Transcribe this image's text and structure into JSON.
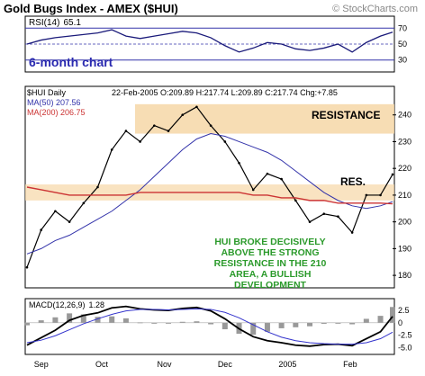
{
  "title": "Gold Bugs Index - AMEX ($HUI)",
  "credit": "© StockCharts.com",
  "chart_data": [
    {
      "type": "line",
      "name": "rsi-panel",
      "label": "RSI(14)",
      "last_value": "65.1",
      "ylim": [
        15,
        85
      ],
      "yticks": [
        30,
        50,
        70
      ],
      "reference_lines": [
        30,
        70
      ],
      "annotation": "6-month chart",
      "x": [
        "2004-08-25",
        "2004-09-01",
        "2004-09-08",
        "2004-09-15",
        "2004-09-22",
        "2004-09-29",
        "2004-10-06",
        "2004-10-13",
        "2004-10-20",
        "2004-10-27",
        "2004-11-03",
        "2004-11-10",
        "2004-11-17",
        "2004-11-24",
        "2004-12-01",
        "2004-12-08",
        "2004-12-15",
        "2004-12-22",
        "2004-12-29",
        "2005-01-05",
        "2005-01-12",
        "2005-01-19",
        "2005-01-26",
        "2005-02-02",
        "2005-02-09",
        "2005-02-16",
        "2005-02-22"
      ],
      "values": [
        50,
        55,
        58,
        60,
        62,
        64,
        68,
        60,
        57,
        60,
        63,
        66,
        64,
        58,
        48,
        40,
        45,
        52,
        50,
        44,
        42,
        45,
        50,
        40,
        52,
        60,
        65
      ]
    },
    {
      "type": "line",
      "name": "price-panel",
      "header": "22-Feb-2005  O:209.89  H:217.74  L:209.89  C:217.74  Chg:+7.85",
      "symbol_label": "$HUI Daily",
      "ma_labels": [
        "MA(50) 207.56",
        "MA(200) 206.75"
      ],
      "ylim": [
        176,
        250
      ],
      "yticks": [
        180,
        190,
        200,
        210,
        220,
        230,
        240
      ],
      "x_ticks": [
        "Sep",
        "Oct",
        "Nov",
        "Dec",
        "2005",
        "Feb"
      ],
      "resistance_zone": [
        233,
        244
      ],
      "resistance_label": "RESISTANCE",
      "support_zone": [
        208,
        214
      ],
      "res_label": "RES.",
      "annotation": "HUI BROKE DECISIVELY ABOVE THE STRONG RESISTANCE IN THE 210 AREA, A BULLISH DEVELOPMENT",
      "x": [
        "2004-08-25",
        "2004-09-01",
        "2004-09-08",
        "2004-09-15",
        "2004-09-22",
        "2004-09-29",
        "2004-10-06",
        "2004-10-13",
        "2004-10-20",
        "2004-10-27",
        "2004-11-03",
        "2004-11-10",
        "2004-11-17",
        "2004-11-24",
        "2004-12-01",
        "2004-12-08",
        "2004-12-15",
        "2004-12-22",
        "2004-12-29",
        "2005-01-05",
        "2005-01-12",
        "2005-01-19",
        "2005-01-26",
        "2005-02-02",
        "2005-02-09",
        "2005-02-16",
        "2005-02-22"
      ],
      "series": [
        {
          "name": "$HUI Daily",
          "values": [
            183,
            197,
            204,
            200,
            207,
            213,
            227,
            234,
            230,
            236,
            234,
            240,
            243,
            236,
            230,
            222,
            212,
            218,
            216,
            208,
            200,
            203,
            202,
            196,
            210,
            210,
            217.74
          ]
        },
        {
          "name": "MA(50)",
          "values": [
            188,
            190,
            193,
            195,
            198,
            201,
            204,
            208,
            212,
            217,
            222,
            227,
            231,
            233,
            232,
            230,
            228,
            226,
            223,
            219,
            215,
            211,
            208,
            206,
            205,
            206,
            207.56
          ]
        },
        {
          "name": "MA(200)",
          "values": [
            213,
            212,
            211,
            210,
            210,
            210,
            210,
            210,
            211,
            211,
            211,
            211,
            211,
            211,
            211,
            211,
            210,
            210,
            209,
            209,
            208,
            208,
            207,
            207,
            207,
            207,
            206.75
          ]
        }
      ]
    },
    {
      "type": "line",
      "name": "macd-panel",
      "label": "MACD(12,26,9)",
      "last_value": "1.28",
      "ylim": [
        -6,
        4.5
      ],
      "yticks": [
        -5.0,
        -2.5,
        0,
        2.5
      ],
      "ytick_labels": [
        "-5.0",
        "-2.5",
        "0",
        "2.5"
      ],
      "x_ticks": [
        "Sep",
        "Oct",
        "Nov",
        "Dec",
        "2005",
        "Feb"
      ],
      "x": [
        "2004-08-25",
        "2004-09-01",
        "2004-09-08",
        "2004-09-15",
        "2004-09-22",
        "2004-09-29",
        "2004-10-06",
        "2004-10-13",
        "2004-10-20",
        "2004-10-27",
        "2004-11-03",
        "2004-11-10",
        "2004-11-17",
        "2004-11-24",
        "2004-12-01",
        "2004-12-08",
        "2004-12-15",
        "2004-12-22",
        "2004-12-29",
        "2005-01-05",
        "2005-01-12",
        "2005-01-19",
        "2005-01-26",
        "2005-02-02",
        "2005-02-09",
        "2005-02-16",
        "2005-02-22"
      ],
      "series": [
        {
          "name": "MACD",
          "values": [
            -4.5,
            -3.0,
            -1.5,
            0.5,
            1.5,
            2.0,
            3.0,
            3.3,
            2.8,
            2.6,
            2.5,
            2.9,
            3.1,
            2.4,
            0.8,
            -1.2,
            -2.8,
            -3.6,
            -4.0,
            -4.5,
            -4.7,
            -4.4,
            -4.3,
            -4.6,
            -3.2,
            -1.8,
            1.28
          ]
        },
        {
          "name": "Signal",
          "values": [
            -4.0,
            -3.5,
            -2.6,
            -1.4,
            -0.2,
            0.8,
            1.7,
            2.4,
            2.7,
            2.7,
            2.6,
            2.7,
            2.8,
            2.7,
            2.1,
            1.0,
            -0.4,
            -1.8,
            -2.9,
            -3.6,
            -4.0,
            -4.2,
            -4.3,
            -4.3,
            -4.0,
            -3.2,
            -1.9
          ]
        }
      ],
      "histogram": [
        -0.5,
        0.5,
        1.1,
        1.9,
        1.7,
        1.2,
        1.3,
        0.9,
        0.1,
        -0.1,
        -0.1,
        0.2,
        0.3,
        -0.3,
        -1.3,
        -2.2,
        -2.4,
        -1.8,
        -1.1,
        -0.9,
        -0.7,
        -0.2,
        0.0,
        -0.3,
        0.8,
        1.4,
        3.18
      ]
    }
  ],
  "colors": {
    "price_line": "#000000",
    "ma50": "#3333aa",
    "ma200": "#cc3333",
    "rsi_line": "#1a1a7a",
    "macd_line": "#000000",
    "signal_line": "#3333cc",
    "histogram": "#999999",
    "resistance_zone": "#f6d7a7",
    "annotation_text": "#2b9a2b",
    "chart_label": "#2a2ab0",
    "res_text": "#000000"
  }
}
